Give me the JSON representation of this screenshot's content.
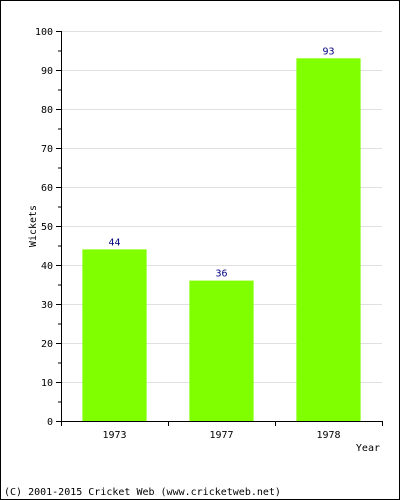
{
  "chart_data": {
    "type": "bar",
    "categories": [
      "1973",
      "1977",
      "1978"
    ],
    "values": [
      44,
      36,
      93
    ],
    "data_labels": [
      "44",
      "36",
      "93"
    ],
    "title": "",
    "xlabel": "Year",
    "ylabel": "Wickets",
    "ylim": [
      0,
      100
    ],
    "y_ticks": [
      "0",
      "10",
      "20",
      "30",
      "40",
      "50",
      "60",
      "70",
      "80",
      "90",
      "100"
    ],
    "grid": true,
    "legend": "none",
    "colors": {
      "bar": "#80ff00",
      "data_label": "#000080",
      "grid": "#e0e0e0",
      "axis": "#000000"
    }
  },
  "footer": {
    "copyright": "(C) 2001-2015 Cricket Web (www.cricketweb.net)"
  }
}
